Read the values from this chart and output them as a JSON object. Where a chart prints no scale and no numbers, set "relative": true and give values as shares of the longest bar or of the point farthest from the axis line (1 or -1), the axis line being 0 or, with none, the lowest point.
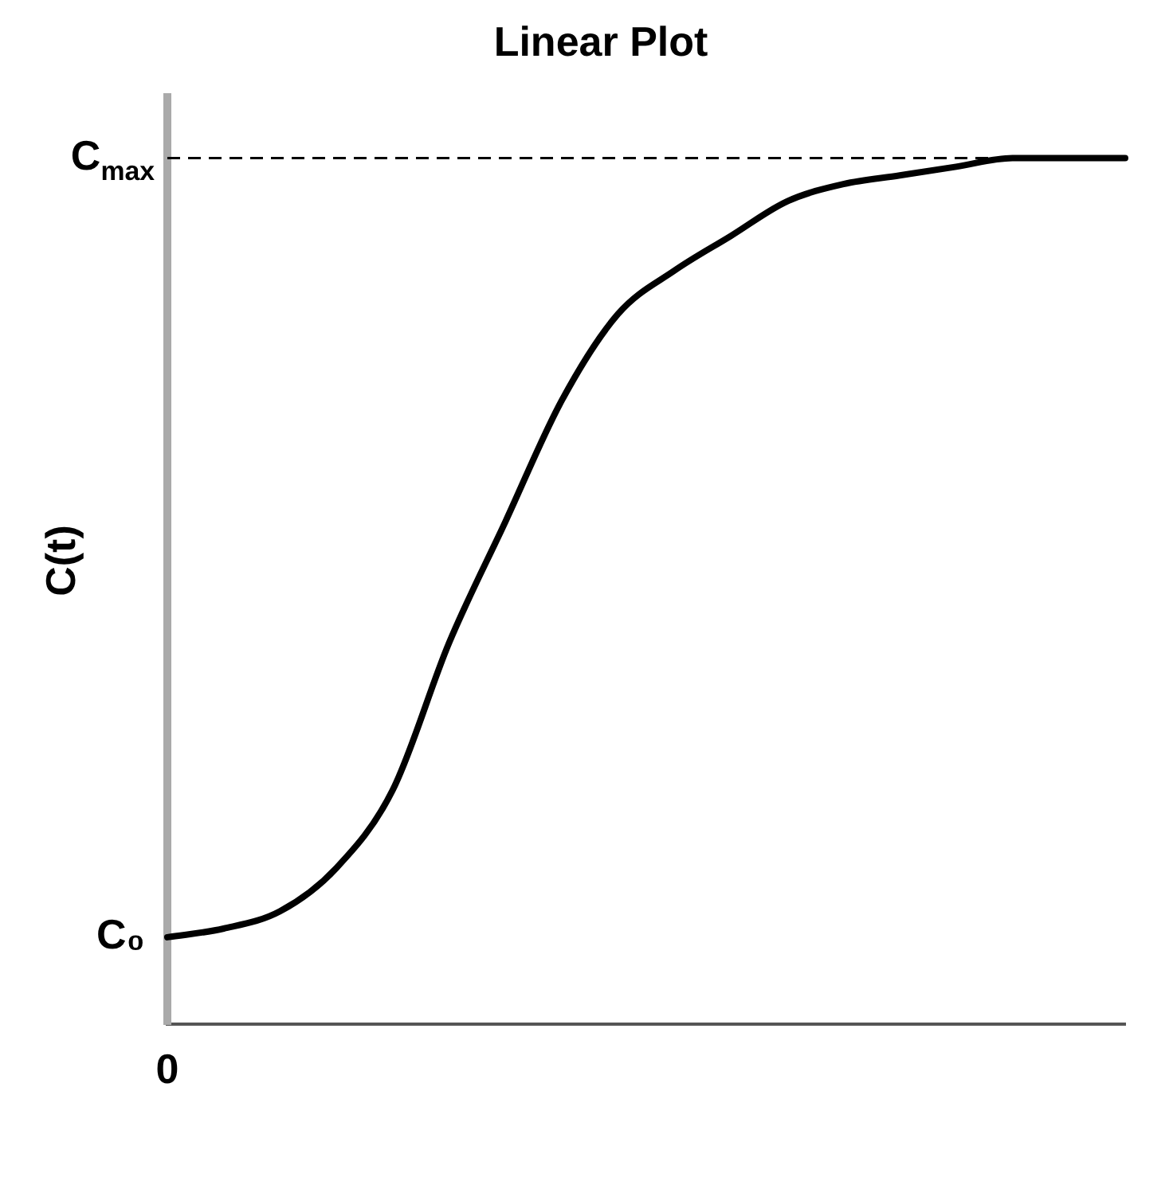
{
  "chart_data": {
    "type": "line",
    "title": "Linear Plot",
    "ylabel": "C(t)",
    "relative": true,
    "categories": [
      null,
      null,
      null,
      null,
      null,
      null,
      null,
      null,
      null,
      null,
      null,
      null,
      null,
      null,
      null,
      null,
      null,
      null
    ],
    "series": [
      {
        "color": "#000000",
        "values": [
          0.1,
          0.11,
          0.13,
          0.18,
          0.27,
          0.44,
          0.58,
          0.72,
          0.82,
          0.87,
          0.91,
          0.95,
          0.97,
          0.98,
          0.99,
          1,
          1,
          1
        ]
      }
    ],
    "ref_lines": [
      {
        "axis": "y",
        "value": 1,
        "label": "C$_{max}$",
        "line_style": "dashed",
        "color": "#000000"
      }
    ],
    "annotations": [
      "C₀",
      "0"
    ],
    "marker": "none",
    "line_style": "solid",
    "legend": false,
    "grid": false
  }
}
